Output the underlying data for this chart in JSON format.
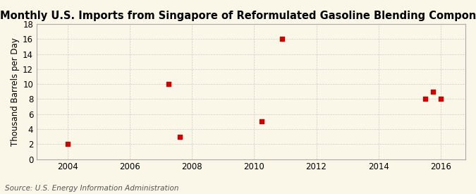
{
  "title": "Monthly U.S. Imports from Singapore of Reformulated Gasoline Blending Components",
  "ylabel": "Thousand Barrels per Day",
  "source": "Source: U.S. Energy Information Administration",
  "x_data": [
    2004.0,
    2007.25,
    2007.6,
    2010.25,
    2010.9,
    2015.5,
    2015.75,
    2016.0
  ],
  "y_data": [
    2,
    10,
    3,
    5,
    16,
    8,
    9,
    8
  ],
  "marker_color": "#cc0000",
  "marker_size": 18,
  "marker_style": "s",
  "xlim": [
    2003.0,
    2016.8
  ],
  "ylim": [
    0,
    18
  ],
  "yticks": [
    0,
    2,
    4,
    6,
    8,
    10,
    12,
    14,
    16,
    18
  ],
  "xticks": [
    2004,
    2006,
    2008,
    2010,
    2012,
    2014,
    2016
  ],
  "background_color": "#faf6e8",
  "plot_bg_color": "#faf6e8",
  "grid_color": "#cccccc",
  "title_fontsize": 10.5,
  "label_fontsize": 8.5,
  "tick_fontsize": 8.5,
  "source_fontsize": 7.5
}
